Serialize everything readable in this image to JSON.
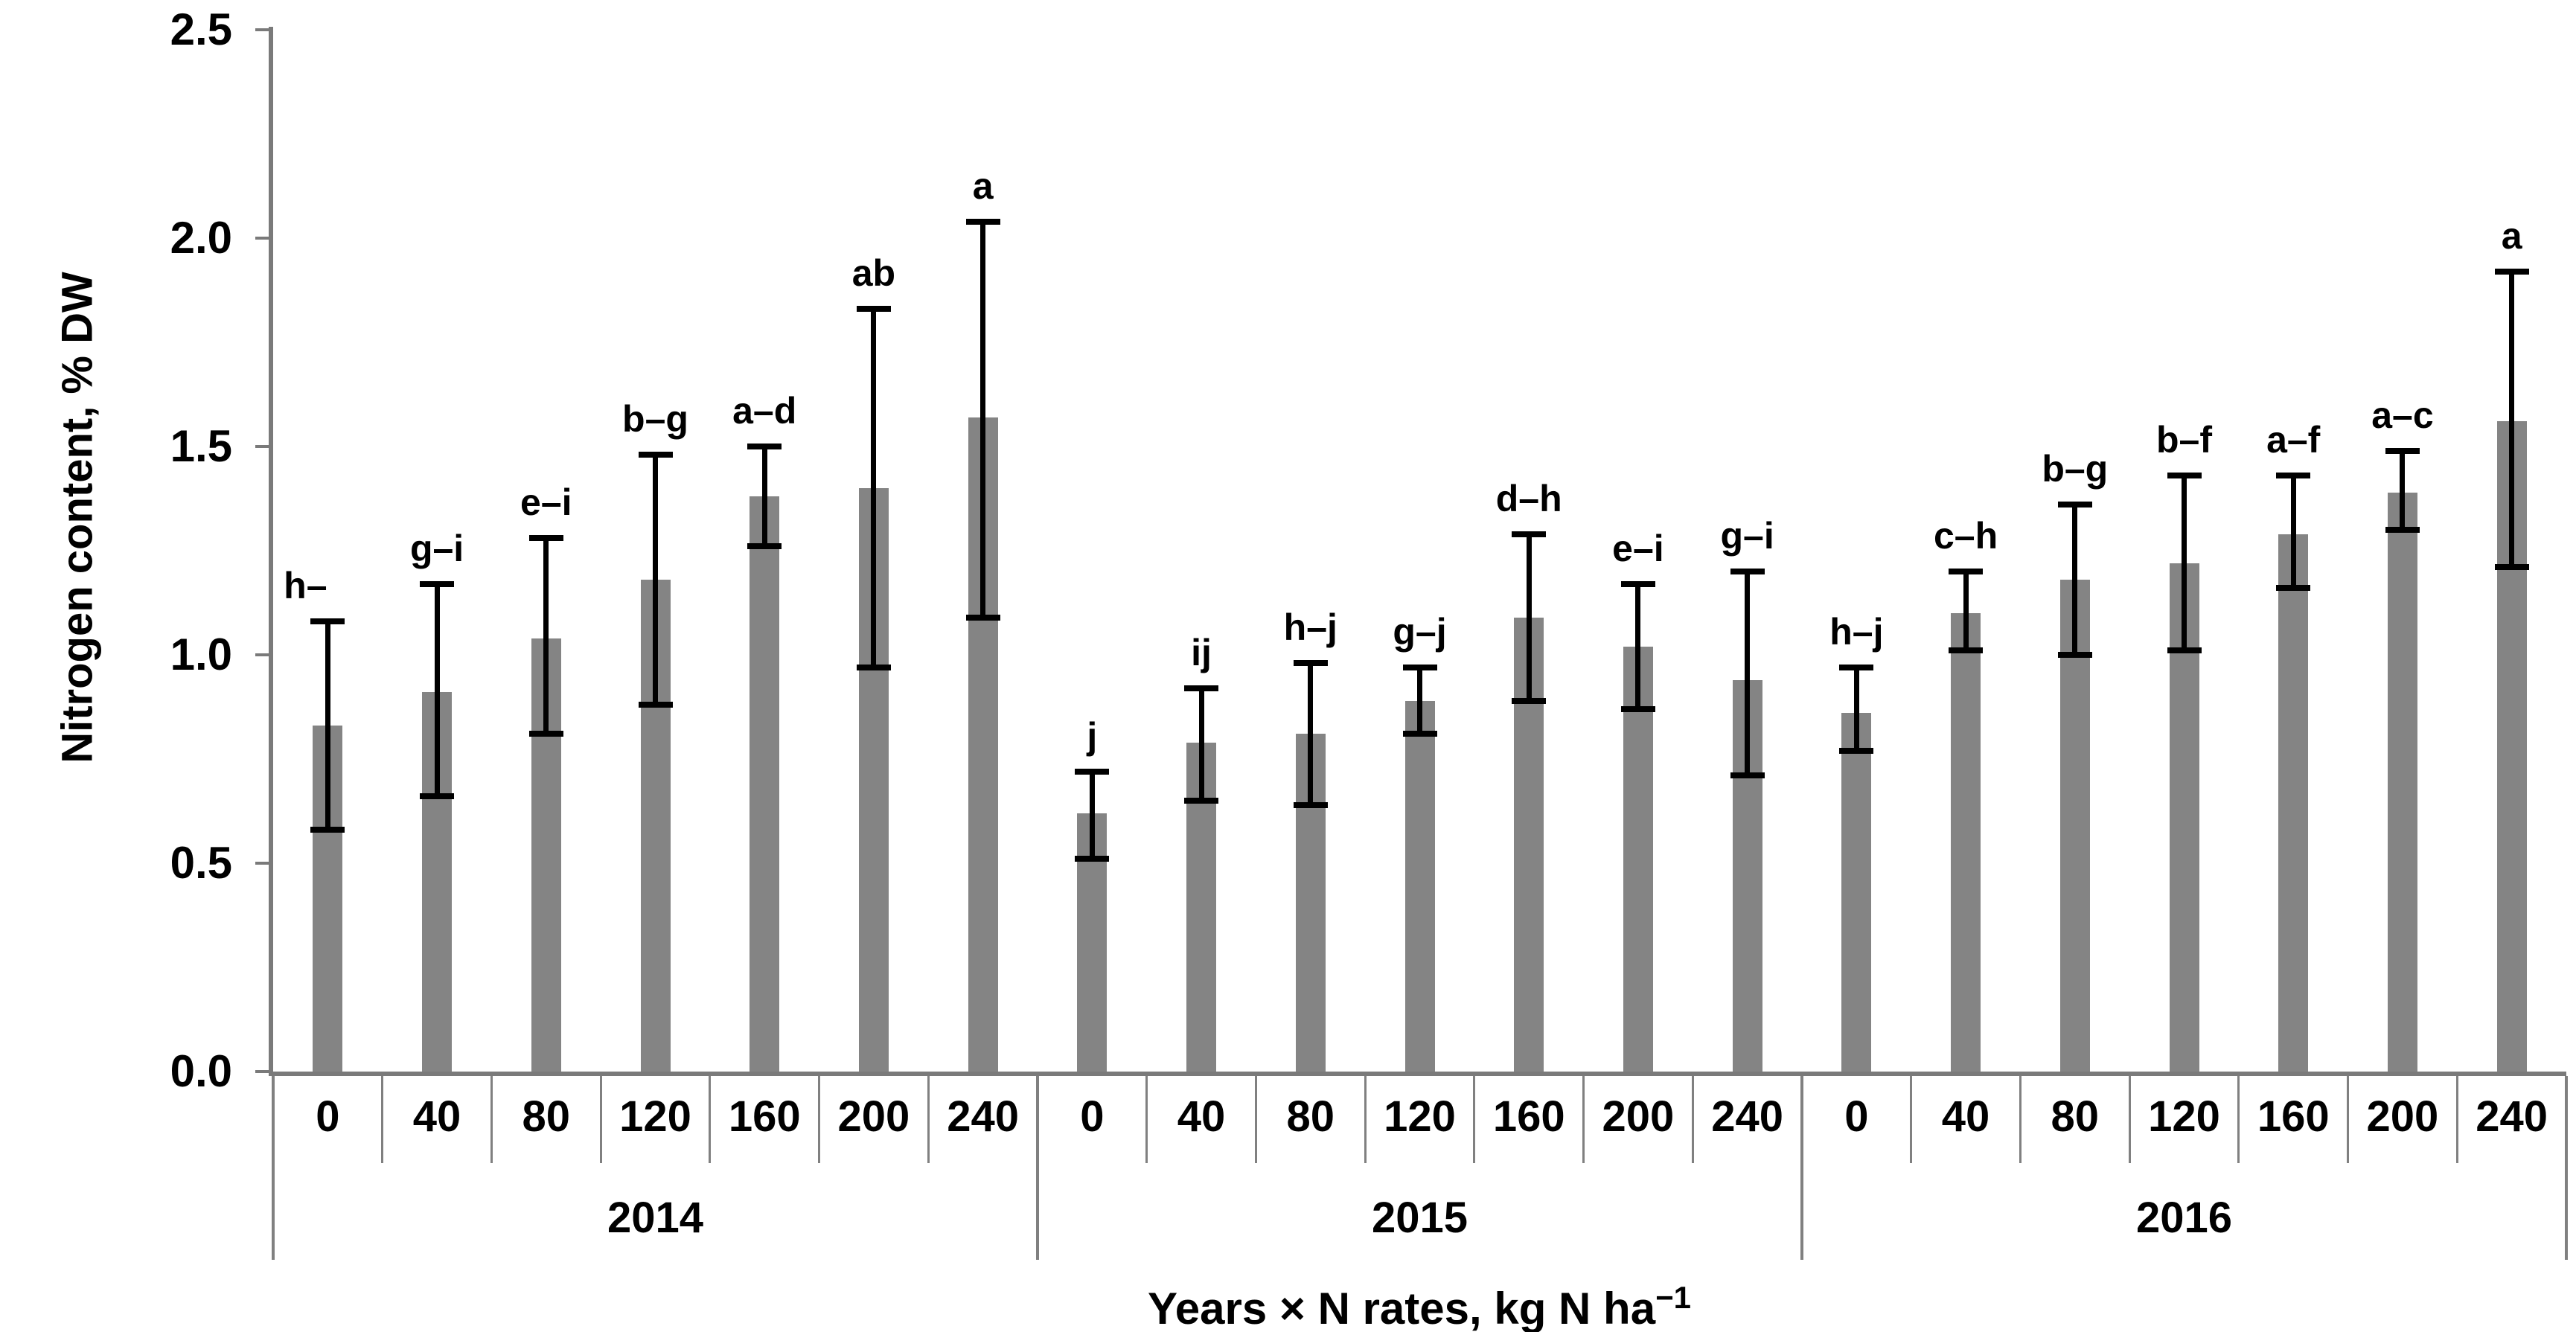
{
  "chart_data": {
    "type": "bar",
    "ylabel": "Nitrogen content, % DW",
    "xlabel_main": "Years × N rates, kg N ha",
    "xlabel_sup": "−1",
    "ylim": [
      0,
      2.5
    ],
    "yticks": [
      {
        "value": 0.0,
        "label": "0.0"
      },
      {
        "value": 0.5,
        "label": "0.5"
      },
      {
        "value": 1.0,
        "label": "1.0"
      },
      {
        "value": 1.5,
        "label": "1.5"
      },
      {
        "value": 2.0,
        "label": "2.0"
      },
      {
        "value": 2.5,
        "label": "2.5"
      }
    ],
    "grid": false,
    "legend": false,
    "bar_color": "#848484",
    "error_color": "#000000",
    "axis_color": "#7a7a7a",
    "groups": [
      {
        "year": "2014",
        "bars": [
          {
            "category": "0",
            "value": 0.83,
            "err_low": 0.58,
            "err_high": 1.08,
            "sig_label": "h–",
            "label_dx": -30
          },
          {
            "category": "40",
            "value": 0.91,
            "err_low": 0.66,
            "err_high": 1.17,
            "sig_label": "g–i",
            "label_dx": 0
          },
          {
            "category": "80",
            "value": 1.04,
            "err_low": 0.81,
            "err_high": 1.28,
            "sig_label": "e–i",
            "label_dx": 0
          },
          {
            "category": "120",
            "value": 1.18,
            "err_low": 0.88,
            "err_high": 1.48,
            "sig_label": "b–g",
            "label_dx": 0
          },
          {
            "category": "160",
            "value": 1.38,
            "err_low": 1.26,
            "err_high": 1.5,
            "sig_label": "a–d",
            "label_dx": 0
          },
          {
            "category": "200",
            "value": 1.4,
            "err_low": 0.97,
            "err_high": 1.83,
            "sig_label": "ab",
            "label_dx": 0
          },
          {
            "category": "240",
            "value": 1.57,
            "err_low": 1.09,
            "err_high": 2.04,
            "sig_label": "a",
            "label_dx": 0
          }
        ]
      },
      {
        "year": "2015",
        "bars": [
          {
            "category": "0",
            "value": 0.62,
            "err_low": 0.51,
            "err_high": 0.72,
            "sig_label": "j",
            "label_dx": 0
          },
          {
            "category": "40",
            "value": 0.79,
            "err_low": 0.65,
            "err_high": 0.92,
            "sig_label": "ij",
            "label_dx": 0
          },
          {
            "category": "80",
            "value": 0.81,
            "err_low": 0.64,
            "err_high": 0.98,
            "sig_label": "h–j",
            "label_dx": 0
          },
          {
            "category": "120",
            "value": 0.89,
            "err_low": 0.81,
            "err_high": 0.97,
            "sig_label": "g–j",
            "label_dx": 0
          },
          {
            "category": "160",
            "value": 1.09,
            "err_low": 0.89,
            "err_high": 1.29,
            "sig_label": "d–h",
            "label_dx": 0
          },
          {
            "category": "200",
            "value": 1.02,
            "err_low": 0.87,
            "err_high": 1.17,
            "sig_label": "e–i",
            "label_dx": 0
          },
          {
            "category": "240",
            "value": 0.94,
            "err_low": 0.71,
            "err_high": 1.2,
            "sig_label": "g–i",
            "label_dx": 0
          }
        ]
      },
      {
        "year": "2016",
        "bars": [
          {
            "category": "0",
            "value": 0.86,
            "err_low": 0.77,
            "err_high": 0.97,
            "sig_label": "h–j",
            "label_dx": 0
          },
          {
            "category": "40",
            "value": 1.1,
            "err_low": 1.01,
            "err_high": 1.2,
            "sig_label": "c–h",
            "label_dx": 0
          },
          {
            "category": "80",
            "value": 1.18,
            "err_low": 1.0,
            "err_high": 1.36,
            "sig_label": "b–g",
            "label_dx": 0
          },
          {
            "category": "120",
            "value": 1.22,
            "err_low": 1.01,
            "err_high": 1.43,
            "sig_label": "b–f",
            "label_dx": 0
          },
          {
            "category": "160",
            "value": 1.29,
            "err_low": 1.16,
            "err_high": 1.43,
            "sig_label": "a–f",
            "label_dx": 0
          },
          {
            "category": "200",
            "value": 1.39,
            "err_low": 1.3,
            "err_high": 1.49,
            "sig_label": "a–c",
            "label_dx": 0
          },
          {
            "category": "240",
            "value": 1.56,
            "err_low": 1.21,
            "err_high": 1.92,
            "sig_label": "a",
            "label_dx": 0
          }
        ]
      }
    ]
  }
}
